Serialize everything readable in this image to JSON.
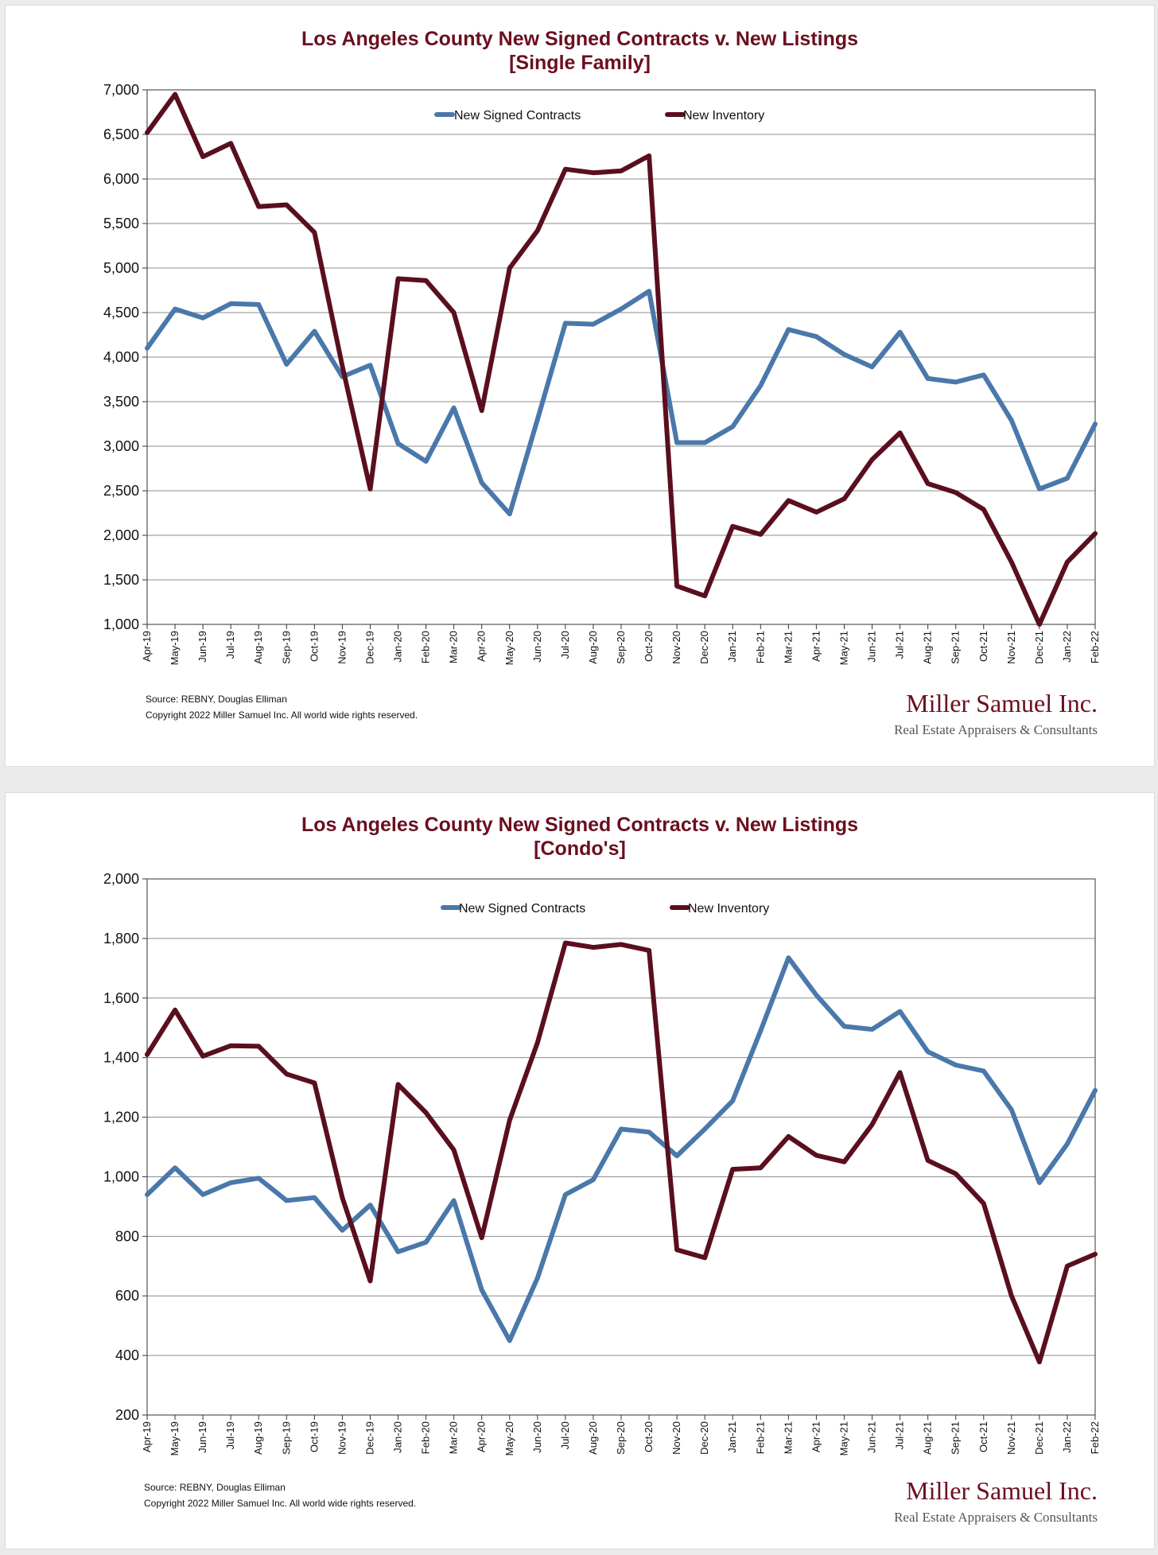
{
  "colors": {
    "contracts": "#4a78aa",
    "inventory": "#5a0f1e",
    "title": "#6b0f1f",
    "grid": "#8c8c8c"
  },
  "footer": {
    "source": "Source: REBNY, Douglas Elliman",
    "copyright": "Copyright 2022 Miller Samuel Inc.  All world wide rights reserved.",
    "brand_name": "Miller Samuel Inc.",
    "brand_tagline": "Real Estate Appraisers & Consultants"
  },
  "chart_data": [
    {
      "type": "line",
      "title": "Los Angeles County New Signed Contracts v. New Listings",
      "subtitle": "[Single Family]",
      "xlabel": "",
      "ylabel": "",
      "ylim": [
        1000,
        7000
      ],
      "yticks": [
        1000,
        1500,
        2000,
        2500,
        3000,
        3500,
        4000,
        4500,
        5000,
        5500,
        6000,
        6500,
        7000
      ],
      "ytick_labels": [
        "1,000",
        "1,500",
        "2,000",
        "2,500",
        "3,000",
        "3,500",
        "4,000",
        "4,500",
        "5,000",
        "5,500",
        "6,000",
        "6,500",
        "7,000"
      ],
      "grid": true,
      "legend_position": "top-center",
      "categories": [
        "Apr-19",
        "May-19",
        "Jun-19",
        "Jul-19",
        "Aug-19",
        "Sep-19",
        "Oct-19",
        "Nov-19",
        "Dec-19",
        "Jan-20",
        "Feb-20",
        "Mar-20",
        "Apr-20",
        "May-20",
        "Jun-20",
        "Jul-20",
        "Aug-20",
        "Sep-20",
        "Oct-20",
        "Nov-20",
        "Dec-20",
        "Jan-21",
        "Feb-21",
        "Mar-21",
        "Apr-21",
        "May-21",
        "Jun-21",
        "Jul-21",
        "Aug-21",
        "Sep-21",
        "Oct-21",
        "Nov-21",
        "Dec-21",
        "Jan-22",
        "Feb-22"
      ],
      "series": [
        {
          "name": "New Signed Contracts",
          "key": "contracts",
          "values": [
            4100,
            4540,
            4440,
            4600,
            4590,
            3920,
            4290,
            3780,
            3910,
            3030,
            2830,
            3430,
            2590,
            2240,
            3300,
            4380,
            4370,
            4540,
            4740,
            3040,
            3040,
            3220,
            3680,
            4310,
            4230,
            4030,
            3890,
            4280,
            3760,
            3720,
            3800,
            3290,
            2520,
            2640,
            3250
          ]
        },
        {
          "name": "New Inventory",
          "key": "inventory",
          "values": [
            6520,
            6950,
            6250,
            6400,
            5690,
            5710,
            5400,
            3900,
            2520,
            4880,
            4860,
            4500,
            3400,
            5000,
            5420,
            6110,
            6070,
            6090,
            6260,
            1430,
            1320,
            2100,
            2010,
            2390,
            2260,
            2410,
            2850,
            3150,
            2580,
            2480,
            2290,
            1700,
            1000,
            1700,
            2020
          ]
        }
      ]
    },
    {
      "type": "line",
      "title": "Los Angeles County New Signed Contracts v. New Listings",
      "subtitle": "[Condo's]",
      "xlabel": "",
      "ylabel": "",
      "ylim": [
        200,
        2000
      ],
      "yticks": [
        200,
        400,
        600,
        800,
        1000,
        1200,
        1400,
        1600,
        1800,
        2000
      ],
      "ytick_labels": [
        "200",
        "400",
        "600",
        "800",
        "1,000",
        "1,200",
        "1,400",
        "1,600",
        "1,800",
        "2,000"
      ],
      "grid": true,
      "legend_position": "top-center",
      "categories": [
        "Apr-19",
        "May-19",
        "Jun-19",
        "Jul-19",
        "Aug-19",
        "Sep-19",
        "Oct-19",
        "Nov-19",
        "Dec-19",
        "Jan-20",
        "Feb-20",
        "Mar-20",
        "Apr-20",
        "May-20",
        "Jun-20",
        "Jul-20",
        "Aug-20",
        "Sep-20",
        "Oct-20",
        "Nov-20",
        "Dec-20",
        "Jan-21",
        "Feb-21",
        "Mar-21",
        "Apr-21",
        "May-21",
        "Jun-21",
        "Jul-21",
        "Aug-21",
        "Sep-21",
        "Oct-21",
        "Nov-21",
        "Dec-21",
        "Jan-22",
        "Feb-22"
      ],
      "series": [
        {
          "name": "New Signed Contracts",
          "key": "contracts",
          "values": [
            940,
            1030,
            940,
            980,
            995,
            920,
            930,
            820,
            905,
            748,
            780,
            920,
            620,
            450,
            660,
            940,
            990,
            1160,
            1150,
            1070,
            1160,
            1255,
            1490,
            1735,
            1610,
            1505,
            1495,
            1555,
            1420,
            1375,
            1355,
            1225,
            980,
            1110,
            1290
          ]
        },
        {
          "name": "New Inventory",
          "key": "inventory",
          "values": [
            1410,
            1560,
            1405,
            1440,
            1438,
            1345,
            1315,
            930,
            650,
            1310,
            1215,
            1090,
            795,
            1190,
            1450,
            1785,
            1770,
            1780,
            1760,
            755,
            728,
            1025,
            1030,
            1135,
            1072,
            1050,
            1175,
            1350,
            1055,
            1010,
            910,
            600,
            378,
            700,
            740
          ]
        }
      ]
    }
  ]
}
